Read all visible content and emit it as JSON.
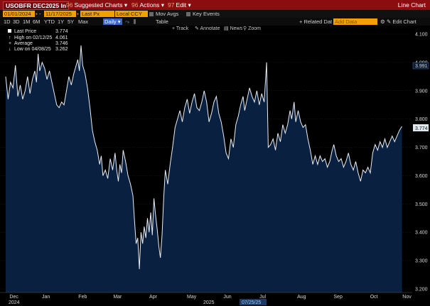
{
  "title_bar": {
    "ticker": "USOBFR DEC2025 In",
    "suggested_num": "96",
    "suggested": "Suggested Charts",
    "actions_num": "96",
    "actions": "Actions",
    "edit_num": "97",
    "edit": "Edit",
    "chart_type": "Line Chart"
  },
  "controls": {
    "start_date": "01/01/2024",
    "end_date": "11/17/2025",
    "price_field": "Last Px",
    "currency": "Local CCY",
    "mov_avgs": "Mov Avgs",
    "key_events": "Key Events"
  },
  "periods": {
    "items": [
      "1D",
      "3D",
      "1M",
      "6M",
      "YTD",
      "1Y",
      "5Y",
      "Max"
    ],
    "frequency": "Daily",
    "table": "Table",
    "related_label": "Related Dat",
    "related_placeholder": "Add Data",
    "edit_chart": "Edit Chart"
  },
  "toolbar": {
    "track": "Track",
    "annotate": "Annotate",
    "news": "News",
    "zoom": "Zoom"
  },
  "legend": {
    "last_label": "Last Price",
    "last_value": "3.774",
    "high_label": "High on 02/12/25",
    "high_value": "4.061",
    "avg_label": "Average",
    "avg_value": "3.746",
    "low_label": "Low on 04/08/25",
    "low_value": "3.262"
  },
  "axis": {
    "year_start": "2024",
    "year_mid": "2025",
    "crosshair_date": "07/25/25",
    "crosshair_value": "3.991",
    "last_tag": "3.774"
  },
  "colors": {
    "title_bar": "#8b0d10",
    "field": "#f0a000",
    "area_fill": "#0a2040",
    "line": "#e8eef5",
    "last_tag": "#dfe8ef"
  },
  "chart_data": {
    "type": "area",
    "ylim": [
      3.2,
      4.1
    ],
    "yticks": [
      3.2,
      3.3,
      3.4,
      3.5,
      3.6,
      3.7,
      3.8,
      3.9,
      4.0,
      4.1
    ],
    "ytick_labels": [
      "3.200",
      "3.300",
      "3.400",
      "3.500",
      "3.600",
      "3.700",
      "3.800",
      "3.900",
      "4.000",
      "4.100"
    ],
    "xticks": [
      {
        "label": "Dec",
        "pos": 0.02
      },
      {
        "label": "Jan",
        "pos": 0.1
      },
      {
        "label": "Feb",
        "pos": 0.19
      },
      {
        "label": "Mar",
        "pos": 0.276
      },
      {
        "label": "Apr",
        "pos": 0.365
      },
      {
        "label": "May",
        "pos": 0.458
      },
      {
        "label": "Jun",
        "pos": 0.548
      },
      {
        "label": "Jul",
        "pos": 0.637
      },
      {
        "label": "Aug",
        "pos": 0.73
      },
      {
        "label": "Sep",
        "pos": 0.82
      },
      {
        "label": "Oct",
        "pos": 0.91
      },
      {
        "label": "Nov",
        "pos": 0.99
      }
    ],
    "points": [
      [
        0.0,
        3.95
      ],
      [
        0.006,
        3.87
      ],
      [
        0.012,
        3.93
      ],
      [
        0.018,
        3.91
      ],
      [
        0.024,
        3.99
      ],
      [
        0.03,
        3.88
      ],
      [
        0.036,
        3.92
      ],
      [
        0.042,
        3.87
      ],
      [
        0.048,
        3.9
      ],
      [
        0.054,
        3.95
      ],
      [
        0.06,
        3.89
      ],
      [
        0.066,
        3.94
      ],
      [
        0.072,
        3.97
      ],
      [
        0.076,
        3.93
      ],
      [
        0.08,
        4.03
      ],
      [
        0.084,
        3.97
      ],
      [
        0.09,
        4.0
      ],
      [
        0.096,
        3.98
      ],
      [
        0.102,
        3.94
      ],
      [
        0.108,
        3.97
      ],
      [
        0.114,
        3.93
      ],
      [
        0.12,
        3.89
      ],
      [
        0.126,
        3.85
      ],
      [
        0.132,
        3.84
      ],
      [
        0.138,
        3.86
      ],
      [
        0.144,
        3.85
      ],
      [
        0.15,
        3.9
      ],
      [
        0.156,
        3.95
      ],
      [
        0.162,
        3.92
      ],
      [
        0.168,
        3.96
      ],
      [
        0.174,
        3.99
      ],
      [
        0.178,
        4.01
      ],
      [
        0.182,
        3.97
      ],
      [
        0.186,
        4.06
      ],
      [
        0.19,
        3.99
      ],
      [
        0.196,
        3.96
      ],
      [
        0.202,
        3.91
      ],
      [
        0.208,
        3.84
      ],
      [
        0.214,
        3.76
      ],
      [
        0.22,
        3.72
      ],
      [
        0.226,
        3.69
      ],
      [
        0.232,
        3.64
      ],
      [
        0.236,
        3.67
      ],
      [
        0.24,
        3.6
      ],
      [
        0.246,
        3.62
      ],
      [
        0.252,
        3.59
      ],
      [
        0.258,
        3.66
      ],
      [
        0.264,
        3.62
      ],
      [
        0.27,
        3.68
      ],
      [
        0.274,
        3.62
      ],
      [
        0.278,
        3.58
      ],
      [
        0.282,
        3.64
      ],
      [
        0.286,
        3.61
      ],
      [
        0.29,
        3.69
      ],
      [
        0.296,
        3.65
      ],
      [
        0.302,
        3.6
      ],
      [
        0.308,
        3.57
      ],
      [
        0.314,
        3.53
      ],
      [
        0.318,
        3.44
      ],
      [
        0.322,
        3.36
      ],
      [
        0.326,
        3.38
      ],
      [
        0.33,
        3.27
      ],
      [
        0.334,
        3.4
      ],
      [
        0.338,
        3.36
      ],
      [
        0.342,
        3.42
      ],
      [
        0.346,
        3.38
      ],
      [
        0.35,
        3.45
      ],
      [
        0.354,
        3.4
      ],
      [
        0.358,
        3.47
      ],
      [
        0.362,
        3.39
      ],
      [
        0.366,
        3.52
      ],
      [
        0.37,
        3.46
      ],
      [
        0.374,
        3.41
      ],
      [
        0.378,
        3.35
      ],
      [
        0.382,
        3.31
      ],
      [
        0.386,
        3.39
      ],
      [
        0.39,
        3.52
      ],
      [
        0.394,
        3.62
      ],
      [
        0.4,
        3.57
      ],
      [
        0.406,
        3.64
      ],
      [
        0.412,
        3.7
      ],
      [
        0.418,
        3.77
      ],
      [
        0.424,
        3.8
      ],
      [
        0.43,
        3.83
      ],
      [
        0.436,
        3.79
      ],
      [
        0.442,
        3.84
      ],
      [
        0.448,
        3.87
      ],
      [
        0.454,
        3.82
      ],
      [
        0.46,
        3.86
      ],
      [
        0.466,
        3.89
      ],
      [
        0.472,
        3.84
      ],
      [
        0.478,
        3.83
      ],
      [
        0.484,
        3.86
      ],
      [
        0.49,
        3.9
      ],
      [
        0.496,
        3.86
      ],
      [
        0.502,
        3.79
      ],
      [
        0.508,
        3.82
      ],
      [
        0.514,
        3.86
      ],
      [
        0.52,
        3.88
      ],
      [
        0.526,
        3.82
      ],
      [
        0.532,
        3.79
      ],
      [
        0.538,
        3.74
      ],
      [
        0.544,
        3.68
      ],
      [
        0.55,
        3.66
      ],
      [
        0.556,
        3.73
      ],
      [
        0.562,
        3.7
      ],
      [
        0.568,
        3.78
      ],
      [
        0.574,
        3.81
      ],
      [
        0.58,
        3.85
      ],
      [
        0.586,
        3.88
      ],
      [
        0.59,
        3.83
      ],
      [
        0.596,
        3.87
      ],
      [
        0.602,
        3.91
      ],
      [
        0.608,
        3.88
      ],
      [
        0.614,
        3.86
      ],
      [
        0.62,
        3.9
      ],
      [
        0.626,
        3.85
      ],
      [
        0.632,
        3.89
      ],
      [
        0.638,
        3.86
      ],
      [
        0.644,
        4.0
      ],
      [
        0.648,
        3.7
      ],
      [
        0.654,
        3.71
      ],
      [
        0.66,
        3.73
      ],
      [
        0.666,
        3.69
      ],
      [
        0.672,
        3.75
      ],
      [
        0.678,
        3.72
      ],
      [
        0.684,
        3.78
      ],
      [
        0.69,
        3.75
      ],
      [
        0.696,
        3.78
      ],
      [
        0.702,
        3.83
      ],
      [
        0.706,
        3.8
      ],
      [
        0.712,
        3.86
      ],
      [
        0.716,
        3.79
      ],
      [
        0.722,
        3.83
      ],
      [
        0.728,
        3.79
      ],
      [
        0.734,
        3.77
      ],
      [
        0.74,
        3.78
      ],
      [
        0.746,
        3.73
      ],
      [
        0.752,
        3.69
      ],
      [
        0.758,
        3.64
      ],
      [
        0.764,
        3.67
      ],
      [
        0.77,
        3.64
      ],
      [
        0.776,
        3.67
      ],
      [
        0.782,
        3.65
      ],
      [
        0.788,
        3.66
      ],
      [
        0.794,
        3.63
      ],
      [
        0.8,
        3.65
      ],
      [
        0.806,
        3.69
      ],
      [
        0.81,
        3.71
      ],
      [
        0.816,
        3.67
      ],
      [
        0.822,
        3.65
      ],
      [
        0.828,
        3.66
      ],
      [
        0.834,
        3.63
      ],
      [
        0.84,
        3.65
      ],
      [
        0.846,
        3.68
      ],
      [
        0.852,
        3.64
      ],
      [
        0.858,
        3.62
      ],
      [
        0.864,
        3.65
      ],
      [
        0.87,
        3.61
      ],
      [
        0.876,
        3.58
      ],
      [
        0.882,
        3.62
      ],
      [
        0.888,
        3.61
      ],
      [
        0.894,
        3.63
      ],
      [
        0.9,
        3.61
      ],
      [
        0.906,
        3.68
      ],
      [
        0.912,
        3.71
      ],
      [
        0.918,
        3.69
      ],
      [
        0.924,
        3.72
      ],
      [
        0.93,
        3.7
      ],
      [
        0.936,
        3.73
      ],
      [
        0.942,
        3.7
      ],
      [
        0.948,
        3.72
      ],
      [
        0.954,
        3.74
      ],
      [
        0.96,
        3.72
      ],
      [
        0.966,
        3.74
      ],
      [
        0.972,
        3.76
      ],
      [
        0.978,
        3.774
      ]
    ]
  }
}
